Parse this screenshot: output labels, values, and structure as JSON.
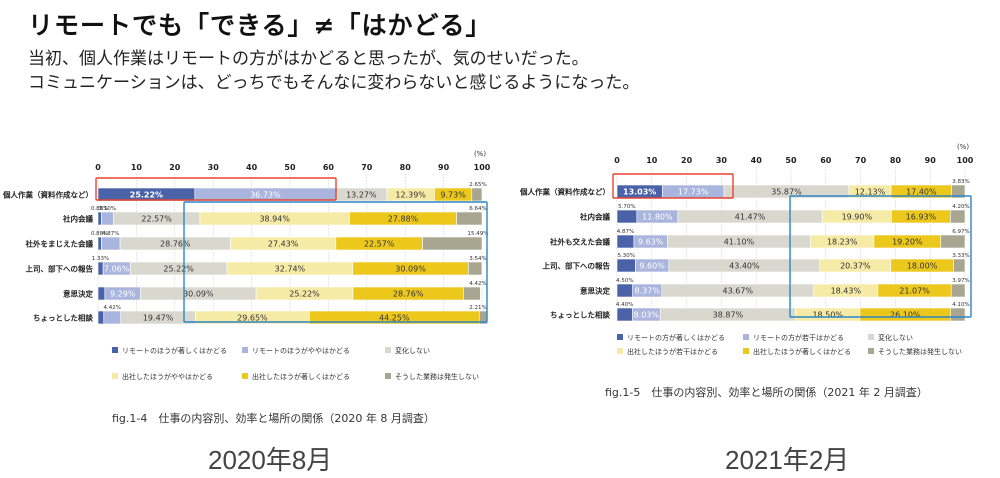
{
  "header": {
    "title": "リモートでも「できる」≠「はかどる」",
    "subtitle_1": "当初、個人作業はリモートの方がはかどると思ったが、気のせいだった。",
    "subtitle_2": "コミュニケーションは、どっちでもそんなに変わらないと感じるようになった。"
  },
  "colors": {
    "c1": "#4a62a8",
    "c2": "#aab5de",
    "c3": "#d9d8cf",
    "c4": "#f5eba7",
    "c5": "#ecc81d",
    "c6": "#a8a690",
    "red_box": "#e8432e",
    "blue_box": "#2d86c5"
  },
  "chart_data": [
    {
      "type": "bar",
      "stacked": "horizontal",
      "caption": "fig.1-4　仕事の内容別、効率と場所の関係（2020 年 8 月調査）",
      "period_label": "2020年8月",
      "unit": "(%)",
      "xlim": [
        0,
        100
      ],
      "xticks": [
        "0",
        "10",
        "20",
        "30",
        "40",
        "50",
        "60",
        "70",
        "80",
        "90",
        "100"
      ],
      "categories": [
        "個人作業（資料作成など）",
        "社内会議",
        "社外をまじえた会議",
        "上司、部下への報告",
        "意思決定",
        "ちょっとした相談"
      ],
      "series": [
        {
          "name": "リモートのほうが著しくはかどる",
          "values": [
            25.22,
            0.88,
            0.88,
            1.33,
            1.8,
            1.5
          ],
          "labels": [
            "25.22%",
            "0.88%",
            "0.88%",
            "1.33%",
            "",
            ""
          ]
        },
        {
          "name": "リモートのほうがややはかどる",
          "values": [
            36.73,
            3.1,
            4.87,
            7.06,
            9.29,
            4.42
          ],
          "labels": [
            "36.73%",
            "3.10%",
            "4.87%",
            "7.06%",
            "9.29%",
            "4.42%"
          ]
        },
        {
          "name": "変化しない",
          "values": [
            13.27,
            22.57,
            28.76,
            25.22,
            30.09,
            19.47
          ],
          "labels": [
            "13.27%",
            "22.57%",
            "28.76%",
            "25.22%",
            "30.09%",
            "19.47%"
          ]
        },
        {
          "name": "出社したほうがややはかどる",
          "values": [
            12.39,
            38.94,
            27.43,
            32.74,
            25.22,
            29.65
          ],
          "labels": [
            "12.39%",
            "38.94%",
            "27.43%",
            "32.74%",
            "25.22%",
            "29.65%"
          ]
        },
        {
          "name": "出社したほうが著しくはかどる",
          "values": [
            9.73,
            27.88,
            22.57,
            30.09,
            28.76,
            44.25
          ],
          "labels": [
            "9.73%",
            "27.88%",
            "22.57%",
            "30.09%",
            "28.76%",
            "44.25%"
          ]
        },
        {
          "name": "そうした業務は発生しない",
          "values": [
            2.65,
            6.64,
            15.49,
            3.54,
            4.42,
            2.21
          ],
          "labels": [
            "2.65%",
            "6.64%",
            "15.49%",
            "3.54%",
            "4.42%",
            "2.21%"
          ]
        }
      ],
      "legend_placement": "bottom"
    },
    {
      "type": "bar",
      "stacked": "horizontal",
      "caption": "fig.1-5　仕事の内容別、効率と場所の関係（2021 年 2 月調査）",
      "period_label": "2021年2月",
      "unit": "(%)",
      "xlim": [
        0,
        100
      ],
      "xticks": [
        "0",
        "10",
        "20",
        "30",
        "40",
        "50",
        "60",
        "70",
        "80",
        "90",
        "100"
      ],
      "categories": [
        "個人作業（資料作成など）",
        "社内会議",
        "社外も交えた会議",
        "上司、部下への報告",
        "意思決定",
        "ちょっとした相談"
      ],
      "series": [
        {
          "name": "リモートの方が著しくはかどる",
          "values": [
            13.03,
            5.7,
            4.87,
            5.3,
            4.5,
            4.4
          ],
          "labels": [
            "13.03%",
            "5.70%",
            "4.87%",
            "5.30%",
            "4.50%",
            "4.40%"
          ]
        },
        {
          "name": "リモートの方が若干はかどる",
          "values": [
            17.73,
            11.8,
            9.63,
            9.6,
            8.37,
            8.03
          ],
          "labels": [
            "17.73%",
            "11.80%",
            "9.63%",
            "9.60%",
            "8.37%",
            "8.03%"
          ]
        },
        {
          "name": "変化しない",
          "values": [
            35.87,
            41.47,
            41.1,
            43.4,
            43.67,
            38.87
          ],
          "labels": [
            "35.87%",
            "41.47%",
            "41.10%",
            "43.40%",
            "43.67%",
            "38.87%"
          ]
        },
        {
          "name": "出社したほうが若干はかどる",
          "values": [
            12.13,
            19.9,
            18.23,
            20.37,
            18.43,
            18.5
          ],
          "labels": [
            "12.13%",
            "19.90%",
            "18.23%",
            "20.37%",
            "18.43%",
            "18.50%"
          ]
        },
        {
          "name": "出社したほうが著しくはかどる",
          "values": [
            17.4,
            16.93,
            19.2,
            18.0,
            21.07,
            26.1
          ],
          "labels": [
            "17.40%",
            "16.93%",
            "19.20%",
            "18.00%",
            "21.07%",
            "26.10%"
          ]
        },
        {
          "name": "そうした業務は発生しない",
          "values": [
            3.83,
            4.2,
            6.97,
            3.33,
            3.97,
            4.1
          ],
          "labels": [
            "3.83%",
            "4.20%",
            "6.97%",
            "3.33%",
            "3.97%",
            "4.10%"
          ]
        }
      ],
      "legend_placement": "bottom"
    }
  ]
}
